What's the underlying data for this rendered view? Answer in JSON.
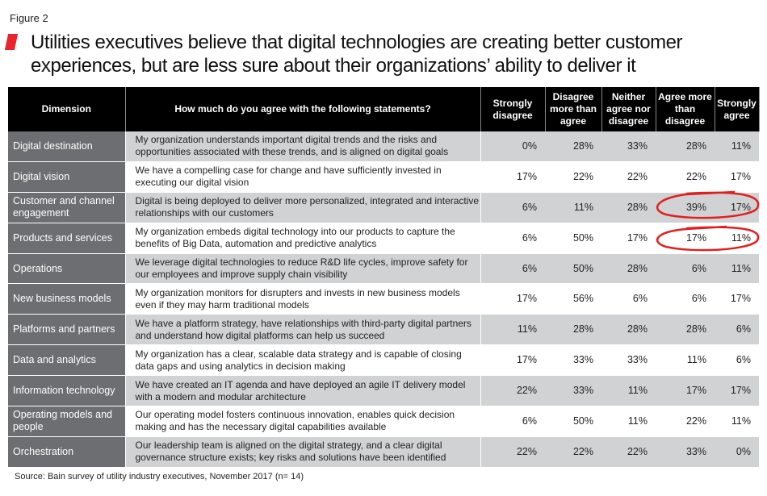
{
  "figure_label": "Figure 2",
  "title_line1": "Utilities executives believe that digital technologies are creating better customer",
  "title_line2": "experiences, but are less sure about their organizations’ ability to deliver it",
  "accent_color": "#e8252a",
  "source": "Source: Bain survey of utility industry executives, November 2017 (n= 14)",
  "chart_data": {
    "type": "table",
    "columns": [
      "Dimension",
      "How much do you agree with the following statements?",
      "Strongly disagree",
      "Disagree more than agree",
      "Neither agree nor disagree",
      "Agree more than disagree",
      "Strongly agree"
    ],
    "rows": [
      {
        "dimension": "Digital destination",
        "statement": "My organization understands important digital trends and the risks and opportunities associated with these trends, and is aligned on digital goals",
        "values": [
          "0%",
          "28%",
          "33%",
          "28%",
          "11%"
        ]
      },
      {
        "dimension": "Digital vision",
        "statement": "We have a compelling case for change and have sufficiently invested in executing our digital vision",
        "values": [
          "17%",
          "22%",
          "22%",
          "22%",
          "17%"
        ]
      },
      {
        "dimension": "Customer and channel engagement",
        "statement": "Digital is being deployed to deliver more personalized, integrated and interactive relationships with our customers",
        "values": [
          "6%",
          "11%",
          "28%",
          "39%",
          "17%"
        ],
        "highlighted": true
      },
      {
        "dimension": "Products  and services",
        "statement": "My organization embeds digital technology into our products to capture the benefits of Big Data, automation and predictive analytics",
        "values": [
          "6%",
          "50%",
          "17%",
          "17%",
          "11%"
        ],
        "highlighted": true
      },
      {
        "dimension": "Operations",
        "statement": "We leverage digital technologies to reduce R&D life cycles, improve safety for our employees and improve supply chain visibility",
        "values": [
          "6%",
          "50%",
          "28%",
          "6%",
          "11%"
        ]
      },
      {
        "dimension": "New business models",
        "statement": "My organization monitors for disrupters and invests in new business models even if they may harm traditional models",
        "values": [
          "17%",
          "56%",
          "6%",
          "6%",
          "17%"
        ]
      },
      {
        "dimension": "Platforms and partners",
        "statement": "We have a platform strategy, have relationships with third-party digital partners and understand how digital platforms can help us succeed",
        "values": [
          "11%",
          "28%",
          "28%",
          "28%",
          "6%"
        ]
      },
      {
        "dimension": "Data and analytics",
        "statement": "My organization has a clear, scalable data strategy and is capable of closing data gaps and using analytics in decision making",
        "values": [
          "17%",
          "33%",
          "33%",
          "11%",
          "6%"
        ]
      },
      {
        "dimension": "Information technology",
        "statement": "We have created an IT agenda and have deployed an agile IT delivery model with a modern and modular architecture",
        "values": [
          "22%",
          "33%",
          "11%",
          "17%",
          "17%"
        ]
      },
      {
        "dimension": "Operating models and people",
        "statement": "Our operating model fosters continuous innovation, enables quick decision making and has the necessary digital capabilities available",
        "values": [
          "6%",
          "50%",
          "11%",
          "22%",
          "11%"
        ]
      },
      {
        "dimension": "Orchestration",
        "statement": "Our leadership team is aligned on the digital strategy, and a clear digital governance structure exists; key risks and solutions have been identified",
        "values": [
          "22%",
          "22%",
          "22%",
          "33%",
          "0%"
        ]
      }
    ]
  }
}
